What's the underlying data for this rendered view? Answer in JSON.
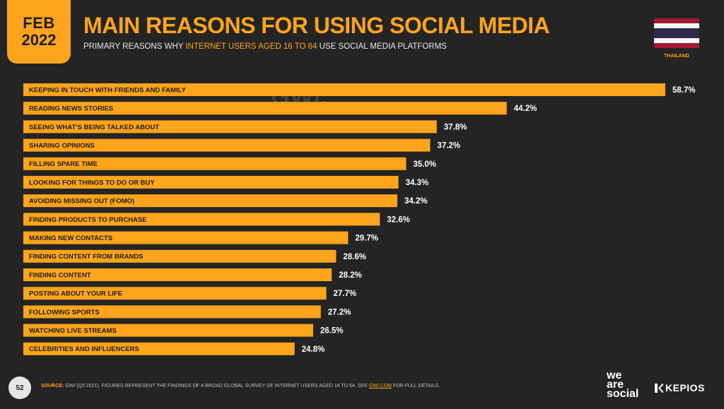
{
  "badge": {
    "month": "FEB",
    "year": "2022"
  },
  "header": {
    "title": "MAIN REASONS FOR USING SOCIAL MEDIA",
    "subtitle_pre": "PRIMARY REASONS WHY ",
    "subtitle_highlight": "INTERNET USERS AGED 16 TO 64",
    "subtitle_post": " USE SOCIAL MEDIA PLATFORMS"
  },
  "flag": {
    "country": "THAILAND",
    "colors": [
      "#a51931",
      "#f4f5f8",
      "#2d2a4a"
    ]
  },
  "watermark": "GWI.",
  "chart_data": {
    "type": "bar",
    "orientation": "horizontal",
    "categories": [
      "KEEPING IN TOUCH WITH FRIENDS AND FAMILY",
      "READING NEWS STORIES",
      "SEEING WHAT'S BEING TALKED ABOUT",
      "SHARING OPINIONS",
      "FILLING SPARE TIME",
      "LOOKING FOR THINGS TO DO OR BUY",
      "AVOIDING MISSING OUT (FOMO)",
      "FINDING PRODUCTS TO PURCHASE",
      "MAKING NEW CONTACTS",
      "FINDING CONTENT FROM BRANDS",
      "FINDING CONTENT",
      "POSTING ABOUT YOUR LIFE",
      "FOLLOWING SPORTS",
      "WATCHING LIVE STREAMS",
      "CELEBRITIES AND INFLUENCERS"
    ],
    "values": [
      58.7,
      44.2,
      37.8,
      37.2,
      35.0,
      34.3,
      34.2,
      32.6,
      29.7,
      28.6,
      28.2,
      27.7,
      27.2,
      26.5,
      24.8
    ],
    "value_labels": [
      "58.7%",
      "44.2%",
      "37.8%",
      "37.2%",
      "35.0%",
      "34.3%",
      "34.2%",
      "32.6%",
      "29.7%",
      "28.6%",
      "28.2%",
      "27.7%",
      "27.2%",
      "26.5%",
      "24.8%"
    ],
    "bar_color": "#ffa41d",
    "xlim": [
      0,
      60
    ],
    "grid": false
  },
  "footer": {
    "page_number": "52",
    "source_key": "SOURCE:",
    "source_text": " GWI (Q3 2021). FIGURES REPRESENT THE FINDINGS OF A BROAD GLOBAL SURVEY OF INTERNET USERS AGED 16 TO 64. SEE ",
    "source_link": "GWI.COM",
    "source_tail": " FOR FULL DETAILS.",
    "logo_line1": "we",
    "logo_line2": "are",
    "logo_line3": "social",
    "kepios": "KEPIOS"
  }
}
